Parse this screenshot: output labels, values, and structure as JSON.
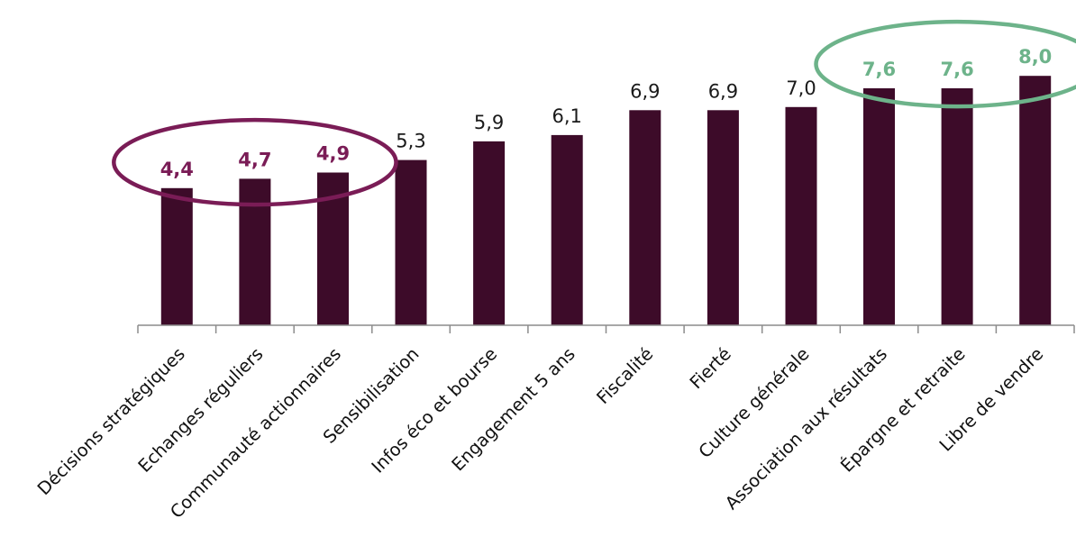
{
  "chart_data": {
    "type": "bar",
    "title": "",
    "xlabel": "",
    "ylabel": "",
    "ylim": [
      0,
      8.8
    ],
    "grid": false,
    "legend": "none",
    "categories": [
      "Décisions stratégiques",
      "Echanges réguliers",
      "Communauté actionnaires",
      "Sensibilisation",
      "Infos éco et bourse",
      "Engagement 5 ans",
      "Fiscalité",
      "Fierté",
      "Culture générale",
      "Association aux résultats",
      "Épargne et retraite",
      "Libre de vendre"
    ],
    "values": [
      4.4,
      4.7,
      4.9,
      5.3,
      5.9,
      6.1,
      6.9,
      6.9,
      7.0,
      7.6,
      7.6,
      8.0
    ],
    "value_labels": [
      "4,4",
      "4,7",
      "4,9",
      "5,3",
      "5,9",
      "6,1",
      "6,9",
      "6,9",
      "7,0",
      "7,6",
      "7,6",
      "8,0"
    ],
    "highlights": [
      {
        "group": "low",
        "indices": [
          0,
          1,
          2
        ],
        "color": "#7a1c56"
      },
      {
        "group": "high",
        "indices": [
          9,
          10,
          11
        ],
        "color": "#6db38a"
      }
    ],
    "bar_color": "#3d0b29"
  }
}
